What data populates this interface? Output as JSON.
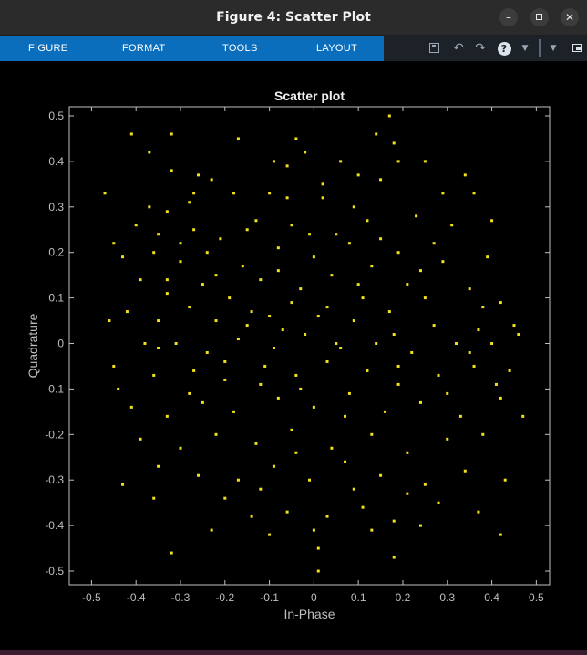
{
  "window": {
    "title": "Figure 4: Scatter Plot",
    "buttons": {
      "minimize": "–",
      "close": "✕"
    }
  },
  "toolstrip": {
    "tabs": [
      "FIGURE",
      "FORMAT",
      "TOOLS",
      "LAYOUT"
    ],
    "icons": [
      "save-icon",
      "undo-icon",
      "redo-icon",
      "help-icon",
      "dropdown-icon",
      "dock-dropdown-icon",
      "undock-icon"
    ],
    "accent": "#0a6ebd"
  },
  "chart_data": {
    "type": "scatter",
    "title": "Scatter plot",
    "xlabel": "In-Phase",
    "ylabel": "Quadrature",
    "xlim": [
      -0.55,
      0.53
    ],
    "ylim": [
      -0.53,
      0.52
    ],
    "xticks": [
      -0.5,
      -0.4,
      -0.3,
      -0.2,
      -0.1,
      0,
      0.1,
      0.2,
      0.3,
      0.4,
      0.5
    ],
    "yticks": [
      -0.5,
      -0.4,
      -0.3,
      -0.2,
      -0.1,
      0,
      0.1,
      0.2,
      0.3,
      0.4,
      0.5
    ],
    "xtick_labels": [
      "-0.5",
      "-0.4",
      "-0.3",
      "-0.2",
      "-0.1",
      "0",
      "0.1",
      "0.2",
      "0.3",
      "0.4",
      "0.5"
    ],
    "ytick_labels": [
      "-0.5",
      "-0.4",
      "-0.3",
      "-0.2",
      "-0.1",
      "0",
      "0.1",
      "0.2",
      "0.3",
      "0.4",
      "0.5"
    ],
    "grid": false,
    "marker_color": "#f2e21a",
    "background": "#000000",
    "series": [
      {
        "points": [
          [
            -0.47,
            0.33
          ],
          [
            -0.41,
            0.46
          ],
          [
            -0.37,
            0.42
          ],
          [
            -0.32,
            0.46
          ],
          [
            -0.17,
            0.45
          ],
          [
            -0.04,
            0.45
          ],
          [
            -0.02,
            0.42
          ],
          [
            0.17,
            0.5
          ],
          [
            0.14,
            0.46
          ],
          [
            0.18,
            0.44
          ],
          [
            -0.32,
            0.38
          ],
          [
            -0.26,
            0.37
          ],
          [
            -0.23,
            0.36
          ],
          [
            -0.09,
            0.4
          ],
          [
            -0.06,
            0.39
          ],
          [
            0.06,
            0.4
          ],
          [
            0.1,
            0.37
          ],
          [
            0.19,
            0.4
          ],
          [
            0.25,
            0.4
          ],
          [
            0.34,
            0.37
          ],
          [
            -0.37,
            0.3
          ],
          [
            -0.33,
            0.29
          ],
          [
            -0.28,
            0.31
          ],
          [
            -0.18,
            0.33
          ],
          [
            -0.1,
            0.33
          ],
          [
            -0.06,
            0.32
          ],
          [
            0.02,
            0.32
          ],
          [
            0.09,
            0.3
          ],
          [
            0.15,
            0.36
          ],
          [
            0.36,
            0.33
          ],
          [
            -0.4,
            0.26
          ],
          [
            -0.35,
            0.24
          ],
          [
            -0.27,
            0.25
          ],
          [
            -0.21,
            0.23
          ],
          [
            -0.13,
            0.27
          ],
          [
            -0.05,
            0.26
          ],
          [
            0.05,
            0.24
          ],
          [
            0.12,
            0.27
          ],
          [
            0.23,
            0.28
          ],
          [
            0.31,
            0.26
          ],
          [
            -0.43,
            0.19
          ],
          [
            -0.36,
            0.2
          ],
          [
            -0.3,
            0.18
          ],
          [
            -0.24,
            0.2
          ],
          [
            -0.16,
            0.17
          ],
          [
            -0.08,
            0.21
          ],
          [
            0.0,
            0.19
          ],
          [
            0.08,
            0.22
          ],
          [
            0.19,
            0.2
          ],
          [
            0.29,
            0.18
          ],
          [
            -0.39,
            0.14
          ],
          [
            -0.33,
            0.11
          ],
          [
            -0.25,
            0.13
          ],
          [
            -0.19,
            0.1
          ],
          [
            -0.12,
            0.14
          ],
          [
            -0.03,
            0.12
          ],
          [
            0.04,
            0.15
          ],
          [
            0.11,
            0.1
          ],
          [
            0.21,
            0.13
          ],
          [
            0.35,
            0.12
          ],
          [
            -0.42,
            0.07
          ],
          [
            -0.35,
            0.05
          ],
          [
            -0.28,
            0.08
          ],
          [
            -0.22,
            0.05
          ],
          [
            -0.14,
            0.07
          ],
          [
            -0.07,
            0.03
          ],
          [
            0.01,
            0.06
          ],
          [
            0.09,
            0.05
          ],
          [
            0.17,
            0.07
          ],
          [
            0.27,
            0.04
          ],
          [
            -0.46,
            0.05
          ],
          [
            -0.38,
            0.0
          ],
          [
            -0.31,
            0.0
          ],
          [
            -0.24,
            -0.02
          ],
          [
            -0.17,
            0.01
          ],
          [
            -0.09,
            -0.01
          ],
          [
            -0.02,
            0.02
          ],
          [
            0.06,
            -0.01
          ],
          [
            0.14,
            0.0
          ],
          [
            0.22,
            -0.02
          ],
          [
            0.32,
            0.0
          ],
          [
            0.4,
            0.0
          ],
          [
            0.46,
            0.02
          ],
          [
            0.37,
            0.03
          ],
          [
            0.44,
            -0.06
          ],
          [
            -0.44,
            -0.1
          ],
          [
            -0.36,
            -0.07
          ],
          [
            -0.27,
            -0.06
          ],
          [
            -0.2,
            -0.08
          ],
          [
            -0.11,
            -0.05
          ],
          [
            -0.04,
            -0.07
          ],
          [
            0.03,
            -0.04
          ],
          [
            0.12,
            -0.06
          ],
          [
            0.19,
            -0.09
          ],
          [
            0.28,
            -0.07
          ],
          [
            0.36,
            -0.05
          ],
          [
            -0.41,
            -0.14
          ],
          [
            -0.33,
            -0.16
          ],
          [
            -0.25,
            -0.13
          ],
          [
            -0.18,
            -0.15
          ],
          [
            -0.08,
            -0.12
          ],
          [
            0.0,
            -0.14
          ],
          [
            0.08,
            -0.11
          ],
          [
            0.16,
            -0.15
          ],
          [
            0.24,
            -0.13
          ],
          [
            0.33,
            -0.16
          ],
          [
            0.42,
            -0.12
          ],
          [
            0.47,
            -0.16
          ],
          [
            -0.39,
            -0.21
          ],
          [
            -0.3,
            -0.23
          ],
          [
            -0.22,
            -0.2
          ],
          [
            -0.13,
            -0.22
          ],
          [
            -0.05,
            -0.19
          ],
          [
            0.04,
            -0.23
          ],
          [
            0.13,
            -0.2
          ],
          [
            0.21,
            -0.24
          ],
          [
            0.3,
            -0.21
          ],
          [
            0.38,
            -0.2
          ],
          [
            -0.43,
            -0.31
          ],
          [
            -0.35,
            -0.27
          ],
          [
            -0.26,
            -0.29
          ],
          [
            -0.17,
            -0.3
          ],
          [
            -0.09,
            -0.27
          ],
          [
            -0.01,
            -0.3
          ],
          [
            0.07,
            -0.26
          ],
          [
            0.15,
            -0.29
          ],
          [
            0.25,
            -0.31
          ],
          [
            0.34,
            -0.28
          ],
          [
            0.43,
            -0.3
          ],
          [
            -0.36,
            -0.34
          ],
          [
            -0.2,
            -0.34
          ],
          [
            -0.14,
            -0.38
          ],
          [
            -0.06,
            -0.37
          ],
          [
            0.03,
            -0.38
          ],
          [
            0.11,
            -0.36
          ],
          [
            0.18,
            -0.39
          ],
          [
            0.28,
            -0.35
          ],
          [
            0.37,
            -0.37
          ],
          [
            -0.23,
            -0.41
          ],
          [
            -0.1,
            -0.42
          ],
          [
            0.0,
            -0.41
          ],
          [
            0.13,
            -0.41
          ],
          [
            0.24,
            -0.4
          ],
          [
            0.42,
            -0.42
          ],
          [
            -0.32,
            -0.46
          ],
          [
            0.01,
            -0.45
          ],
          [
            0.18,
            -0.47
          ],
          [
            0.01,
            -0.5
          ],
          [
            -0.45,
            0.22
          ],
          [
            0.4,
            0.27
          ],
          [
            -0.3,
            0.22
          ],
          [
            -0.15,
            0.25
          ],
          [
            0.27,
            0.22
          ],
          [
            0.42,
            0.09
          ],
          [
            0.39,
            0.19
          ],
          [
            -0.05,
            0.09
          ],
          [
            0.03,
            0.08
          ],
          [
            -0.15,
            0.04
          ],
          [
            0.18,
            0.02
          ],
          [
            0.25,
            0.1
          ],
          [
            -0.2,
            -0.04
          ],
          [
            -0.12,
            -0.09
          ],
          [
            0.07,
            -0.16
          ],
          [
            0.19,
            -0.05
          ],
          [
            0.3,
            -0.11
          ],
          [
            -0.28,
            -0.11
          ],
          [
            -0.04,
            -0.24
          ],
          [
            0.09,
            -0.32
          ],
          [
            -0.12,
            -0.32
          ],
          [
            0.21,
            -0.33
          ],
          [
            0.1,
            0.13
          ],
          [
            -0.01,
            0.24
          ],
          [
            -0.22,
            0.15
          ],
          [
            0.15,
            0.23
          ],
          [
            -0.1,
            0.06
          ],
          [
            0.05,
            0.0
          ],
          [
            -0.03,
            -0.1
          ],
          [
            0.02,
            0.35
          ],
          [
            0.29,
            0.33
          ],
          [
            -0.27,
            0.33
          ],
          [
            -0.08,
            0.16
          ],
          [
            0.13,
            0.17
          ],
          [
            0.24,
            0.16
          ],
          [
            -0.33,
            0.14
          ],
          [
            -0.35,
            -0.01
          ],
          [
            0.35,
            -0.02
          ],
          [
            0.41,
            -0.09
          ],
          [
            -0.45,
            -0.05
          ],
          [
            0.45,
            0.04
          ],
          [
            0.38,
            0.08
          ]
        ]
      }
    ]
  }
}
